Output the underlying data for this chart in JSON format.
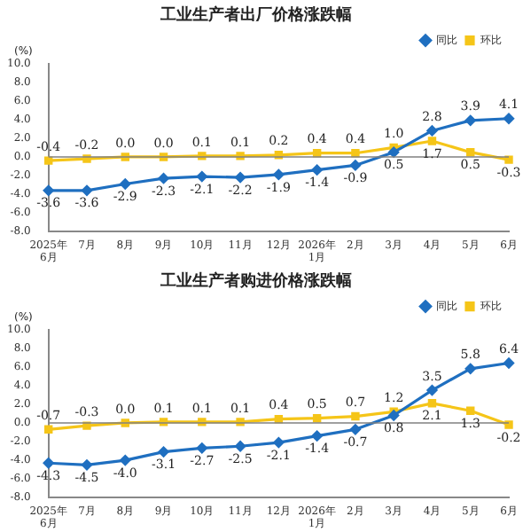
{
  "chart_data": [
    {
      "type": "line",
      "title": "工业生产者出厂价格涨跌幅",
      "ylabel": "(%)",
      "categories": [
        "2025年\n6月",
        "7月",
        "8月",
        "9月",
        "10月",
        "11月",
        "12月",
        "2026年\n1月",
        "2月",
        "3月",
        "4月",
        "5月",
        "6月"
      ],
      "series": [
        {
          "name": "同比",
          "color": "#1f6fc0",
          "marker": "diamond",
          "values": [
            -3.6,
            -3.6,
            -2.9,
            -2.3,
            -2.1,
            -2.2,
            -1.9,
            -1.4,
            -0.9,
            0.5,
            2.8,
            3.9,
            4.1
          ],
          "value_labels": [
            "-3.6",
            "-3.6",
            "-2.9",
            "-2.3",
            "-2.1",
            "-2.2",
            "-1.9",
            "-1.4",
            "-0.9",
            "0.5",
            "2.8",
            "3.9",
            "4.1"
          ]
        },
        {
          "name": "环比",
          "color": "#f5c518",
          "marker": "square",
          "values": [
            -0.4,
            -0.2,
            0.0,
            0.0,
            0.1,
            0.1,
            0.2,
            0.4,
            0.4,
            1.0,
            1.7,
            0.5,
            -0.3
          ],
          "value_labels": [
            "-0.4",
            "-0.2",
            "0.0",
            "0.0",
            "0.1",
            "0.1",
            "0.2",
            "0.4",
            "0.4",
            "1.0",
            "1.7",
            "0.5",
            "-0.3"
          ]
        }
      ],
      "ylim": [
        -8,
        10
      ],
      "yticks": [
        {
          "value": -8,
          "label": "-8.0"
        },
        {
          "value": -6,
          "label": "-6.0"
        },
        {
          "value": -4,
          "label": "-4.0"
        },
        {
          "value": -2,
          "label": "-2.0"
        },
        {
          "value": 0,
          "label": "0.0"
        },
        {
          "value": 2,
          "label": "2.0"
        },
        {
          "value": 4,
          "label": "4.0"
        },
        {
          "value": 6,
          "label": "6.0"
        },
        {
          "value": 8,
          "label": "8.0"
        },
        {
          "value": 10,
          "label": "10.0"
        }
      ],
      "ref_lines": [
        {
          "axis": "y",
          "value": 0,
          "color": "#808080"
        }
      ],
      "grid": false,
      "legend": "top right"
    },
    {
      "type": "line",
      "title": "工业生产者购进价格涨跌幅",
      "ylabel": "(%)",
      "categories": [
        "2025年\n6月",
        "7月",
        "8月",
        "9月",
        "10月",
        "11月",
        "12月",
        "2026年\n1月",
        "2月",
        "3月",
        "4月",
        "5月",
        "6月"
      ],
      "series": [
        {
          "name": "同比",
          "color": "#1f6fc0",
          "marker": "diamond",
          "values": [
            -4.3,
            -4.5,
            -4.0,
            -3.1,
            -2.7,
            -2.5,
            -2.1,
            -1.4,
            -0.7,
            0.8,
            3.5,
            5.8,
            6.4
          ],
          "value_labels": [
            "-4.3",
            "-4.5",
            "-4.0",
            "-3.1",
            "-2.7",
            "-2.5",
            "-2.1",
            "-1.4",
            "-0.7",
            "0.8",
            "3.5",
            "5.8",
            "6.4"
          ]
        },
        {
          "name": "环比",
          "color": "#f5c518",
          "marker": "square",
          "values": [
            -0.7,
            -0.3,
            0.0,
            0.1,
            0.1,
            0.1,
            0.4,
            0.5,
            0.7,
            1.2,
            2.1,
            1.3,
            -0.2
          ],
          "value_labels": [
            "-0.7",
            "-0.3",
            "0.0",
            "0.1",
            "0.1",
            "0.1",
            "0.4",
            "0.5",
            "0.7",
            "1.2",
            "2.1",
            "1.3",
            "-0.2"
          ]
        }
      ],
      "ylim": [
        -8,
        10
      ],
      "yticks": [
        {
          "value": -8,
          "label": "-8.0"
        },
        {
          "value": -6,
          "label": "-6.0"
        },
        {
          "value": -4,
          "label": "-4.0"
        },
        {
          "value": -2,
          "label": "-2.0"
        },
        {
          "value": 0,
          "label": "0.0"
        },
        {
          "value": 2,
          "label": "2.0"
        },
        {
          "value": 4,
          "label": "4.0"
        },
        {
          "value": 6,
          "label": "6.0"
        },
        {
          "value": 8,
          "label": "8.0"
        },
        {
          "value": 10,
          "label": "10.0"
        }
      ],
      "ref_lines": [
        {
          "axis": "y",
          "value": 0,
          "color": "#808080"
        }
      ],
      "grid": false,
      "legend": "top right"
    }
  ]
}
